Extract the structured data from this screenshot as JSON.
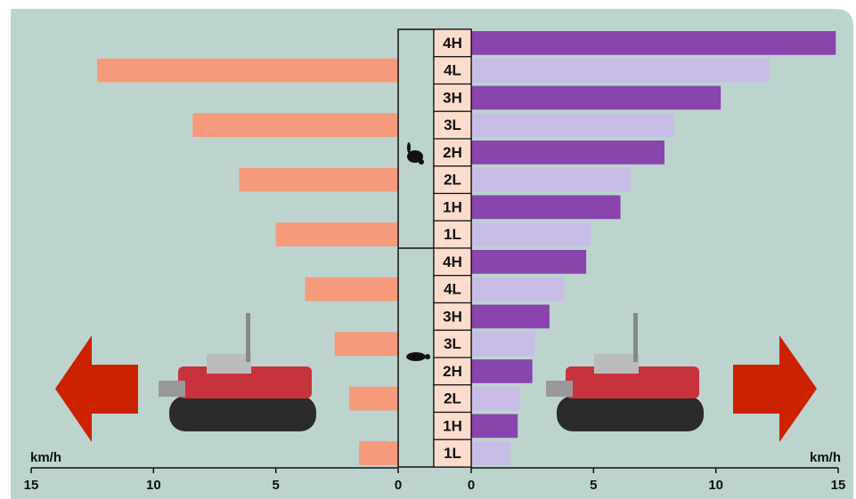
{
  "chart_data": {
    "type": "butterfly-bar",
    "categories": [
      "4H",
      "4L",
      "3H",
      "3L",
      "2H",
      "2L",
      "1H",
      "1L",
      "4H",
      "4L",
      "3H",
      "3L",
      "2H",
      "2L",
      "1H",
      "1L"
    ],
    "series": [
      {
        "side": "left",
        "color": "#f59b7c",
        "values": [
          null,
          12.3,
          null,
          8.4,
          null,
          6.5,
          null,
          5.0,
          null,
          3.8,
          null,
          2.6,
          null,
          2.0,
          null,
          1.6
        ]
      },
      {
        "side": "right",
        "colors": [
          "#8944ad",
          "#c8bde6"
        ],
        "values": [
          14.9,
          12.2,
          10.2,
          8.3,
          7.9,
          6.5,
          6.1,
          4.9,
          4.7,
          3.8,
          3.2,
          2.6,
          2.5,
          2.0,
          1.9,
          1.6
        ]
      }
    ],
    "xlim_left": [
      0,
      15
    ],
    "xticks_left": [
      15,
      10,
      5,
      0
    ],
    "xlabel_left": "km/h",
    "xlim_right": [
      0,
      15
    ],
    "xticks_right": [
      0,
      5,
      10,
      15
    ],
    "xlabel_right": "km/h",
    "background": "#bcd3ce"
  }
}
